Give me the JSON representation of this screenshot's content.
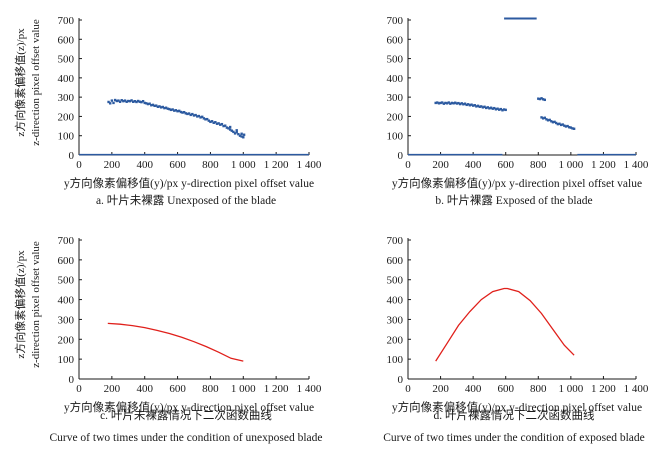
{
  "axes": {
    "xlabel": "y方向像素偏移值(y)/px  y-direction pixel offset value",
    "ylabel": "z方向像素偏移值(z)/px",
    "ylabel_en": "z-direction pixel offset value",
    "xlim": [
      0,
      1400
    ],
    "ylim": [
      0,
      700
    ],
    "xticks": [
      "0",
      "200",
      "400",
      "600",
      "800",
      "1 000",
      "1 200",
      "1 400"
    ],
    "yticks": [
      "0",
      "100",
      "200",
      "300",
      "400",
      "500",
      "600",
      "700"
    ]
  },
  "chart_data": [
    {
      "type": "scatter",
      "caption": [
        "a. 叶片未裸露 Unexposed of the blade"
      ],
      "show_ylabel": true,
      "color": "#2c5aa0",
      "xlim": [
        0,
        1400
      ],
      "ylim": [
        0,
        700
      ],
      "points": [
        [
          180,
          275
        ],
        [
          190,
          268
        ],
        [
          200,
          282
        ],
        [
          210,
          270
        ],
        [
          220,
          285
        ],
        [
          230,
          280
        ],
        [
          240,
          282
        ],
        [
          250,
          276
        ],
        [
          260,
          284
        ],
        [
          270,
          279
        ],
        [
          280,
          282
        ],
        [
          290,
          276
        ],
        [
          300,
          280
        ],
        [
          310,
          279
        ],
        [
          320,
          283
        ],
        [
          330,
          276
        ],
        [
          340,
          279
        ],
        [
          350,
          275
        ],
        [
          360,
          280
        ],
        [
          370,
          276
        ],
        [
          380,
          274
        ],
        [
          390,
          279
        ],
        [
          400,
          270
        ],
        [
          410,
          268
        ],
        [
          420,
          264
        ],
        [
          430,
          266
        ],
        [
          440,
          258
        ],
        [
          450,
          260
        ],
        [
          460,
          255
        ],
        [
          470,
          256
        ],
        [
          480,
          250
        ],
        [
          490,
          252
        ],
        [
          500,
          247
        ],
        [
          510,
          249
        ],
        [
          520,
          243
        ],
        [
          530,
          245
        ],
        [
          540,
          240
        ],
        [
          550,
          238
        ],
        [
          560,
          234
        ],
        [
          570,
          236
        ],
        [
          580,
          230
        ],
        [
          590,
          232
        ],
        [
          600,
          227
        ],
        [
          610,
          229
        ],
        [
          620,
          223
        ],
        [
          630,
          220
        ],
        [
          640,
          222
        ],
        [
          650,
          216
        ],
        [
          660,
          213
        ],
        [
          670,
          215
        ],
        [
          680,
          208
        ],
        [
          690,
          212
        ],
        [
          700,
          205
        ],
        [
          710,
          207
        ],
        [
          720,
          200
        ],
        [
          730,
          202
        ],
        [
          740,
          195
        ],
        [
          750,
          198
        ],
        [
          760,
          190
        ],
        [
          770,
          185
        ],
        [
          780,
          186
        ],
        [
          790,
          178
        ],
        [
          800,
          172
        ],
        [
          810,
          175
        ],
        [
          820,
          167
        ],
        [
          830,
          170
        ],
        [
          840,
          162
        ],
        [
          850,
          164
        ],
        [
          860,
          157
        ],
        [
          870,
          160
        ],
        [
          880,
          150
        ],
        [
          890,
          152
        ],
        [
          900,
          142
        ],
        [
          910,
          138
        ],
        [
          920,
          132
        ],
        [
          930,
          126
        ],
        [
          940,
          120
        ],
        [
          950,
          112
        ],
        [
          960,
          118
        ],
        [
          970,
          108
        ],
        [
          980,
          100
        ],
        [
          990,
          96
        ],
        [
          1000,
          92
        ],
        [
          1005,
          105
        ],
        [
          960,
          128
        ],
        [
          990,
          110
        ],
        [
          920,
          145
        ]
      ],
      "baseline": [
        [
          0,
          2
        ],
        [
          1400,
          2
        ]
      ]
    },
    {
      "type": "scatter",
      "caption": [
        "b. 叶片裸露 Exposed of the blade"
      ],
      "show_ylabel": false,
      "color": "#2c5aa0",
      "xlim": [
        0,
        1400
      ],
      "ylim": [
        0,
        700
      ],
      "points": [
        [
          170,
          270
        ],
        [
          180,
          272
        ],
        [
          190,
          268
        ],
        [
          200,
          270
        ],
        [
          210,
          272
        ],
        [
          220,
          266
        ],
        [
          230,
          270
        ],
        [
          240,
          268
        ],
        [
          250,
          272
        ],
        [
          260,
          266
        ],
        [
          270,
          270
        ],
        [
          280,
          268
        ],
        [
          290,
          271
        ],
        [
          300,
          267
        ],
        [
          310,
          269
        ],
        [
          320,
          264
        ],
        [
          330,
          268
        ],
        [
          340,
          263
        ],
        [
          350,
          266
        ],
        [
          360,
          260
        ],
        [
          370,
          263
        ],
        [
          380,
          258
        ],
        [
          390,
          261
        ],
        [
          400,
          256
        ],
        [
          410,
          258
        ],
        [
          420,
          252
        ],
        [
          430,
          255
        ],
        [
          440,
          250
        ],
        [
          450,
          252
        ],
        [
          460,
          247
        ],
        [
          470,
          250
        ],
        [
          480,
          244
        ],
        [
          490,
          247
        ],
        [
          500,
          242
        ],
        [
          510,
          245
        ],
        [
          520,
          240
        ],
        [
          530,
          243
        ],
        [
          540,
          237
        ],
        [
          550,
          240
        ],
        [
          560,
          235
        ],
        [
          570,
          238
        ],
        [
          580,
          232
        ],
        [
          590,
          236
        ],
        [
          600,
          234
        ],
        [
          800,
          292
        ],
        [
          810,
          290
        ],
        [
          820,
          294
        ],
        [
          830,
          289
        ],
        [
          840,
          286
        ],
        [
          820,
          195
        ],
        [
          830,
          190
        ],
        [
          840,
          193
        ],
        [
          850,
          185
        ],
        [
          860,
          180
        ],
        [
          870,
          182
        ],
        [
          880,
          175
        ],
        [
          890,
          170
        ],
        [
          900,
          172
        ],
        [
          910,
          166
        ],
        [
          920,
          160
        ],
        [
          930,
          162
        ],
        [
          940,
          156
        ],
        [
          950,
          158
        ],
        [
          960,
          152
        ],
        [
          970,
          148
        ],
        [
          980,
          150
        ],
        [
          990,
          144
        ],
        [
          1000,
          142
        ],
        [
          1010,
          138
        ],
        [
          1020,
          136
        ]
      ],
      "segments": [
        {
          "from": [
            590,
            708
          ],
          "to": [
            790,
            708
          ]
        }
      ],
      "baseline": [
        [
          0,
          2
        ],
        [
          580,
          2
        ],
        [
          1040,
          2
        ],
        [
          1400,
          2
        ]
      ]
    },
    {
      "type": "line",
      "caption": [
        "c. 叶片未裸露情况下二次函数曲线",
        "Curve of two times under the condition of unexposed blade"
      ],
      "show_ylabel": true,
      "color": "#e0201b",
      "xlim": [
        0,
        1400
      ],
      "ylim": [
        0,
        700
      ],
      "x": [
        175,
        250,
        325,
        400,
        475,
        550,
        625,
        700,
        775,
        850,
        925,
        1000
      ],
      "y": [
        280,
        276,
        269,
        259,
        245,
        229,
        210,
        188,
        163,
        135,
        104,
        90
      ]
    },
    {
      "type": "line",
      "caption": [
        "d. 叶片裸露情况下二次函数曲线",
        "Curve of two times under the condition of exposed blade"
      ],
      "show_ylabel": false,
      "color": "#e0201b",
      "xlim": [
        0,
        1400
      ],
      "ylim": [
        0,
        700
      ],
      "x": [
        170,
        240,
        310,
        380,
        450,
        520,
        590,
        610,
        680,
        750,
        820,
        890,
        960,
        1020
      ],
      "y": [
        90,
        180,
        270,
        340,
        400,
        440,
        456,
        456,
        440,
        395,
        330,
        250,
        170,
        120
      ]
    }
  ]
}
